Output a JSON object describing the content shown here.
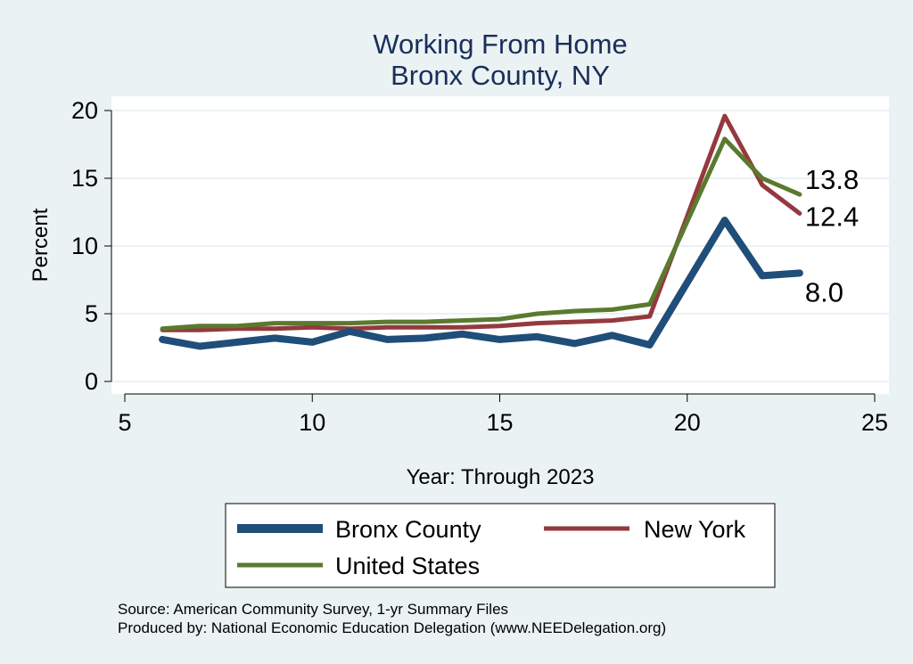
{
  "chart_data": {
    "type": "line",
    "title": [
      "Working From Home",
      "Bronx County, NY"
    ],
    "xlabel": "Year: Through 2023",
    "ylabel": "Percent",
    "xlim": [
      5,
      25
    ],
    "ylim": [
      0,
      20
    ],
    "xticks": [
      5,
      10,
      15,
      20,
      25
    ],
    "yticks": [
      0,
      5,
      10,
      15,
      20
    ],
    "grid": true,
    "series": [
      {
        "name": "Bronx County",
        "color": "#1f4e79",
        "x": [
          6,
          7,
          8,
          9,
          10,
          11,
          12,
          13,
          14,
          15,
          16,
          17,
          18,
          19,
          21,
          22,
          23
        ],
        "values": [
          3.1,
          2.6,
          2.9,
          3.2,
          2.9,
          3.7,
          3.1,
          3.2,
          3.5,
          3.1,
          3.3,
          2.8,
          3.4,
          2.7,
          11.9,
          7.8,
          8.0
        ],
        "end_label": "8.0"
      },
      {
        "name": "New York",
        "color": "#943a3f",
        "x": [
          6,
          7,
          8,
          9,
          10,
          11,
          12,
          13,
          14,
          15,
          16,
          17,
          18,
          19,
          21,
          22,
          23
        ],
        "values": [
          3.8,
          3.8,
          3.9,
          3.9,
          4.0,
          3.9,
          4.0,
          4.0,
          4.0,
          4.1,
          4.3,
          4.4,
          4.5,
          4.8,
          19.6,
          14.5,
          12.4
        ],
        "end_label": "12.4"
      },
      {
        "name": "United States",
        "color": "#5a7a2e",
        "x": [
          6,
          7,
          8,
          9,
          10,
          11,
          12,
          13,
          14,
          15,
          16,
          17,
          18,
          19,
          21,
          22,
          23
        ],
        "values": [
          3.9,
          4.1,
          4.1,
          4.3,
          4.3,
          4.3,
          4.4,
          4.4,
          4.5,
          4.6,
          5.0,
          5.2,
          5.3,
          5.7,
          17.9,
          15.0,
          13.8
        ],
        "end_label": "13.8"
      }
    ],
    "legend": {
      "position": "bottom"
    }
  },
  "source_lines": [
    "Source: American Community Survey, 1-yr Summary Files",
    "Produced by: National Economic Education Delegation (www.NEEDelegation.org)"
  ]
}
